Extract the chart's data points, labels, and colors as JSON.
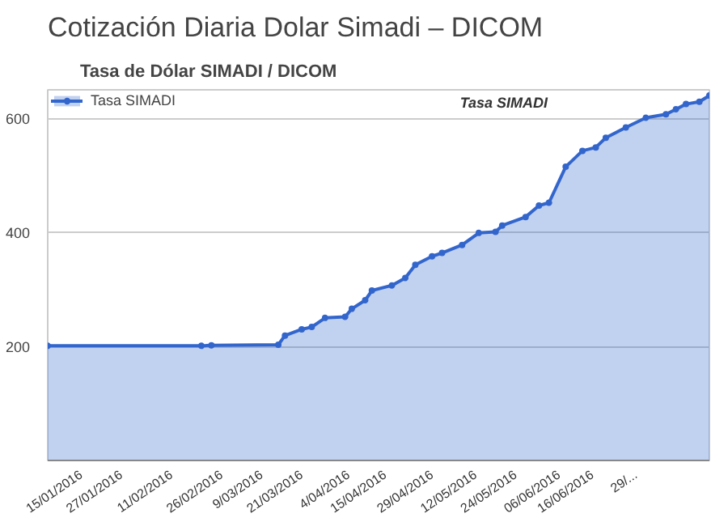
{
  "chart_data": {
    "type": "area",
    "title": "Cotización Diaria Dolar Simadi – DICOM",
    "subtitle": "Tasa de Dólar SIMADI / DICOM",
    "annotations": [
      "Tasa SIMADI"
    ],
    "x": [
      "2016-01-05",
      "2016-02-20",
      "2016-02-23",
      "2016-03-14",
      "2016-03-16",
      "2016-03-21",
      "2016-03-24",
      "2016-03-28",
      "2016-04-03",
      "2016-04-05",
      "2016-04-09",
      "2016-04-11",
      "2016-04-17",
      "2016-04-21",
      "2016-04-24",
      "2016-04-29",
      "2016-05-02",
      "2016-05-08",
      "2016-05-13",
      "2016-05-18",
      "2016-05-20",
      "2016-05-27",
      "2016-05-31",
      "2016-06-03",
      "2016-06-08",
      "2016-06-13",
      "2016-06-17",
      "2016-06-20",
      "2016-06-26",
      "2016-07-02",
      "2016-07-08",
      "2016-07-11",
      "2016-07-14",
      "2016-07-18",
      "2016-07-21"
    ],
    "series": [
      {
        "name": "Tasa SIMADI",
        "color": "#3366cc",
        "values": [
          201,
          201,
          202,
          203,
          219,
          230,
          234,
          250,
          252,
          266,
          281,
          298,
          307,
          320,
          343,
          358,
          364,
          378,
          399,
          401,
          412,
          427,
          447,
          452,
          515,
          543,
          549,
          566,
          584,
          601,
          607,
          616,
          625,
          629,
          640
        ]
      }
    ],
    "xlim": [
      "2016-01-05",
      "2016-07-21"
    ],
    "xticks": [
      {
        "value": "2016-01-15",
        "label": "15/01/2016"
      },
      {
        "value": "2016-01-27",
        "label": "27/01/2016"
      },
      {
        "value": "2016-02-11",
        "label": "11/02/2016"
      },
      {
        "value": "2016-02-26",
        "label": "26/02/2016"
      },
      {
        "value": "2016-03-09",
        "label": "9/03/2016"
      },
      {
        "value": "2016-03-21",
        "label": "21/03/2016"
      },
      {
        "value": "2016-04-04",
        "label": "4/04/2016"
      },
      {
        "value": "2016-04-15",
        "label": "15/04/2016"
      },
      {
        "value": "2016-04-29",
        "label": "29/04/2016"
      },
      {
        "value": "2016-05-12",
        "label": "12/05/2016"
      },
      {
        "value": "2016-05-24",
        "label": "24/05/2016"
      },
      {
        "value": "2016-06-06",
        "label": "06/06/2016"
      },
      {
        "value": "2016-06-16",
        "label": "16/06/2016"
      },
      {
        "value": "2016-06-29",
        "label": "29/..."
      }
    ],
    "ylim": [
      0,
      650
    ],
    "yticks": [
      200,
      400,
      600
    ],
    "grid": "y",
    "legend": "top left",
    "marker": "circle",
    "line_style": "solid"
  }
}
